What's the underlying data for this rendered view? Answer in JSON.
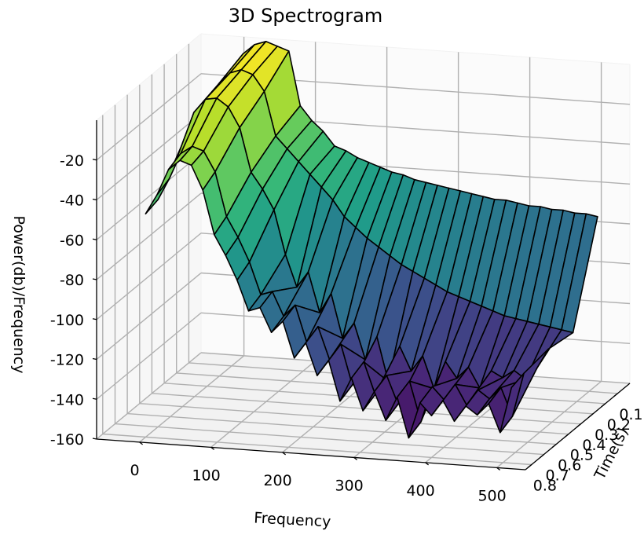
{
  "chart_data": {
    "type": "surface3d",
    "title": "3D Spectrogram",
    "xlabel": "Frequency",
    "ylabel": "Time(s)",
    "zlabel": "Power(db)/Frequency",
    "colormap": "viridis",
    "grid": true,
    "xlim": [
      -60,
      540
    ],
    "ylim": [
      0.0,
      0.85
    ],
    "zlim": [
      -160,
      0
    ],
    "x_ticks": [
      "0",
      "100",
      "200",
      "300",
      "400",
      "500"
    ],
    "y_ticks": [
      "0.1",
      "0.2",
      "0.3",
      "0.4",
      "0.5",
      "0.6",
      "0.7",
      "0.8"
    ],
    "z_ticks": [
      "-20",
      "-40",
      "-60",
      "-80",
      "-100",
      "-120",
      "-140",
      "-160"
    ],
    "frequencies": [
      0,
      16,
      32,
      48,
      64,
      80,
      96,
      112,
      128,
      144,
      160,
      176,
      192,
      208,
      224,
      240,
      256,
      272,
      288,
      304,
      320,
      336,
      352,
      368,
      384,
      400,
      416,
      432,
      448,
      464,
      480,
      496,
      512
    ],
    "times": [
      0.1,
      0.3,
      0.5,
      0.7,
      0.8
    ],
    "power_db": [
      [
        -28,
        -3,
        2,
        4,
        2,
        0,
        -27,
        -34,
        -39,
        -46,
        -48,
        -51,
        -53,
        -55,
        -57,
        -58,
        -60,
        -61,
        -62,
        -63,
        -64,
        -65,
        -66,
        -67,
        -67,
        -68,
        -69,
        -69,
        -70,
        -70,
        -71,
        -71,
        -72
      ],
      [
        -28,
        -8,
        -2,
        0,
        -2,
        -10,
        -32,
        -38,
        -44,
        -50,
        -56,
        -62,
        -70,
        -75,
        -80,
        -84,
        -88,
        -92,
        -95,
        -98,
        -101,
        -104,
        -106,
        -108,
        -110,
        -112,
        -114,
        -115,
        -116,
        -117,
        -118,
        -119,
        -120
      ],
      [
        -28,
        -12,
        -5,
        -4,
        -8,
        -18,
        -40,
        -48,
        -58,
        -80,
        -96,
        -88,
        -108,
        -98,
        -120,
        -112,
        -130,
        -118,
        -140,
        -122,
        -134,
        -126,
        -142,
        -128,
        -136,
        -130,
        -140,
        -131,
        -134,
        -130,
        -134,
        -128,
        -118
      ],
      [
        -46,
        -35,
        -22,
        -18,
        -20,
        -30,
        -52,
        -62,
        -74,
        -90,
        -88,
        -100,
        -94,
        -112,
        -104,
        -120,
        -112,
        -132,
        -120,
        -136,
        -126,
        -140,
        -128,
        -148,
        -130,
        -136,
        -128,
        -138,
        -130,
        -134,
        -128,
        -142,
        -120
      ],
      [
        -48,
        -38,
        -25,
        -20,
        -22,
        -34,
        -56,
        -66,
        -78,
        -93,
        -91,
        -103,
        -97,
        -115,
        -107,
        -123,
        -115,
        -135,
        -123,
        -139,
        -129,
        -143,
        -131,
        -151,
        -133,
        -139,
        -131,
        -141,
        -133,
        -137,
        -131,
        -145,
        -122
      ]
    ]
  }
}
